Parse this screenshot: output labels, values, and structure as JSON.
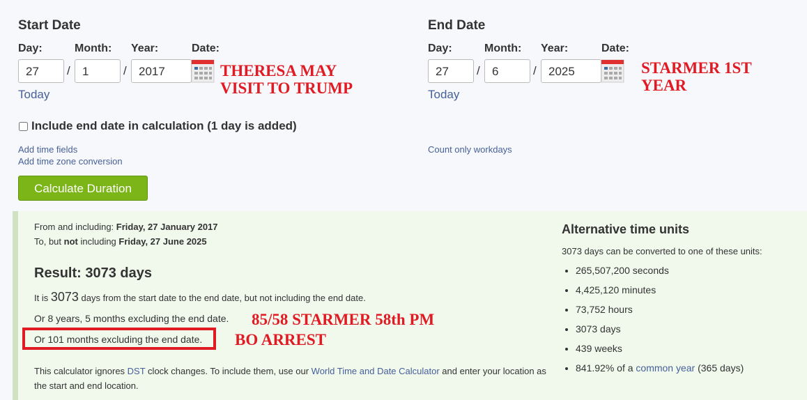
{
  "start": {
    "title": "Start Date",
    "day_label": "Day:",
    "month_label": "Month:",
    "year_label": "Year:",
    "date_label": "Date:",
    "day": "27",
    "month": "1",
    "year": "2017",
    "today": "Today",
    "annotation": [
      "THERESA MAY",
      "VISIT TO TRUMP"
    ]
  },
  "end": {
    "title": "End Date",
    "day_label": "Day:",
    "month_label": "Month:",
    "year_label": "Year:",
    "date_label": "Date:",
    "day": "27",
    "month": "6",
    "year": "2025",
    "today": "Today",
    "annotation": [
      "STARMER 1ST",
      "YEAR"
    ]
  },
  "separator": "/",
  "include_end": {
    "label": "Include end date in calculation (1 day is added)",
    "checked": false
  },
  "links": {
    "add_time": "Add time fields",
    "add_tz": "Add time zone conversion",
    "workdays": "Count only workdays"
  },
  "calculate_label": "Calculate Duration",
  "result": {
    "from_prefix": "From and including: ",
    "from_date": "Friday, 27 January 2017",
    "to_prefix": "To, but ",
    "to_not": "not",
    "to_mid": " including ",
    "to_date": "Friday, 27 June 2025",
    "heading": "Result: 3073 days",
    "line1_pre": "It is ",
    "line1_num": "3073",
    "line1_post": " days from the start date to the end date, but not including the end date.",
    "line2": "Or 8 years, 5 months excluding the end date.",
    "line3": "Or 101 months excluding the end date.",
    "note_pre": "This calculator ignores ",
    "note_dst": "DST",
    "note_mid": " clock changes. To include them, use our ",
    "note_link": "World Time and Date Calculator",
    "note_post": " and enter your location as the start and end location.",
    "annotation1": "85/58 STARMER 58th PM",
    "annotation2": "BO ARREST"
  },
  "alt": {
    "title": "Alternative time units",
    "intro": "3073 days can be converted to one of these units:",
    "items": [
      "265,507,200 seconds",
      "4,425,120 minutes",
      "73,752 hours",
      "3073 days",
      "439 weeks"
    ],
    "last_pre": "841.92% of a ",
    "last_link": "common year",
    "last_post": " (365 days)"
  },
  "colors": {
    "accent": "#7cb518",
    "link": "#46609a",
    "annotation": "#e01b24"
  }
}
